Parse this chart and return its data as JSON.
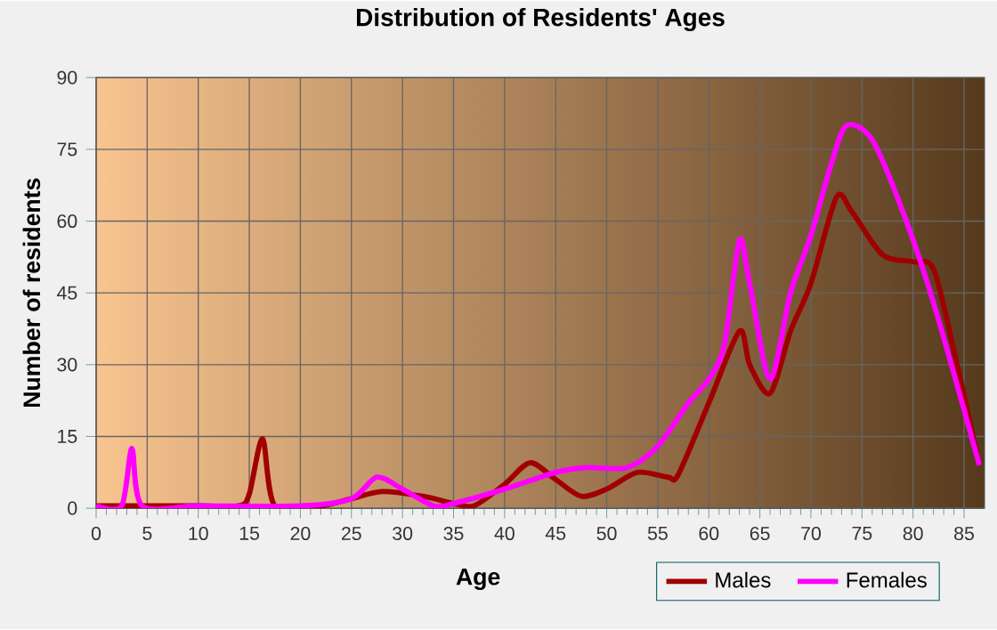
{
  "chart_data": {
    "type": "line",
    "title": "Distribution of Residents' Ages",
    "xlabel": "Age",
    "ylabel": "Number of residents",
    "xlim": [
      0,
      87
    ],
    "ylim": [
      0,
      90
    ],
    "xticks": [
      0,
      5,
      10,
      15,
      20,
      25,
      30,
      35,
      40,
      45,
      50,
      55,
      60,
      65,
      70,
      75,
      80,
      85
    ],
    "yticks": [
      0,
      15,
      30,
      45,
      60,
      75,
      90
    ],
    "grid": true,
    "legend": "bottom",
    "marker": "none",
    "line_style": "solid",
    "series": [
      {
        "name": "Males",
        "color": "#a00000",
        "x": [
          0,
          5,
          10,
          14,
          15,
          16.3,
          17.5,
          22,
          25,
          28,
          32,
          35,
          37,
          40,
          42.5,
          45,
          47.5,
          50,
          53,
          56,
          57,
          60,
          63,
          64,
          66,
          68,
          70,
          72.5,
          74,
          77,
          80,
          82,
          84,
          86.5
        ],
        "values": [
          0.5,
          0.5,
          0.5,
          0.5,
          3,
          14.5,
          0.5,
          0.5,
          2,
          3.5,
          2.5,
          1,
          0.5,
          5,
          9.5,
          6,
          2.5,
          4,
          7.5,
          6.5,
          7,
          22,
          37,
          30,
          24,
          37,
          47,
          65,
          62,
          53,
          51.5,
          50,
          33,
          9
        ]
      },
      {
        "name": "Females",
        "color": "#ff00ff",
        "x": [
          0,
          2.5,
          3.5,
          4.5,
          10,
          20,
          25,
          27.5,
          30,
          33,
          35,
          40,
          45,
          48,
          52,
          55,
          58,
          60,
          61.5,
          63,
          64,
          66,
          68,
          70,
          72,
          73.5,
          76,
          79,
          82,
          86.5
        ],
        "values": [
          0.5,
          0.5,
          12.5,
          0.5,
          0.5,
          0.5,
          2,
          6.5,
          4,
          0.5,
          1,
          4,
          7.5,
          8.5,
          8.5,
          13,
          22,
          27,
          34,
          56,
          47,
          27,
          45,
          57,
          72,
          80,
          77,
          62,
          43,
          9
        ]
      }
    ]
  }
}
